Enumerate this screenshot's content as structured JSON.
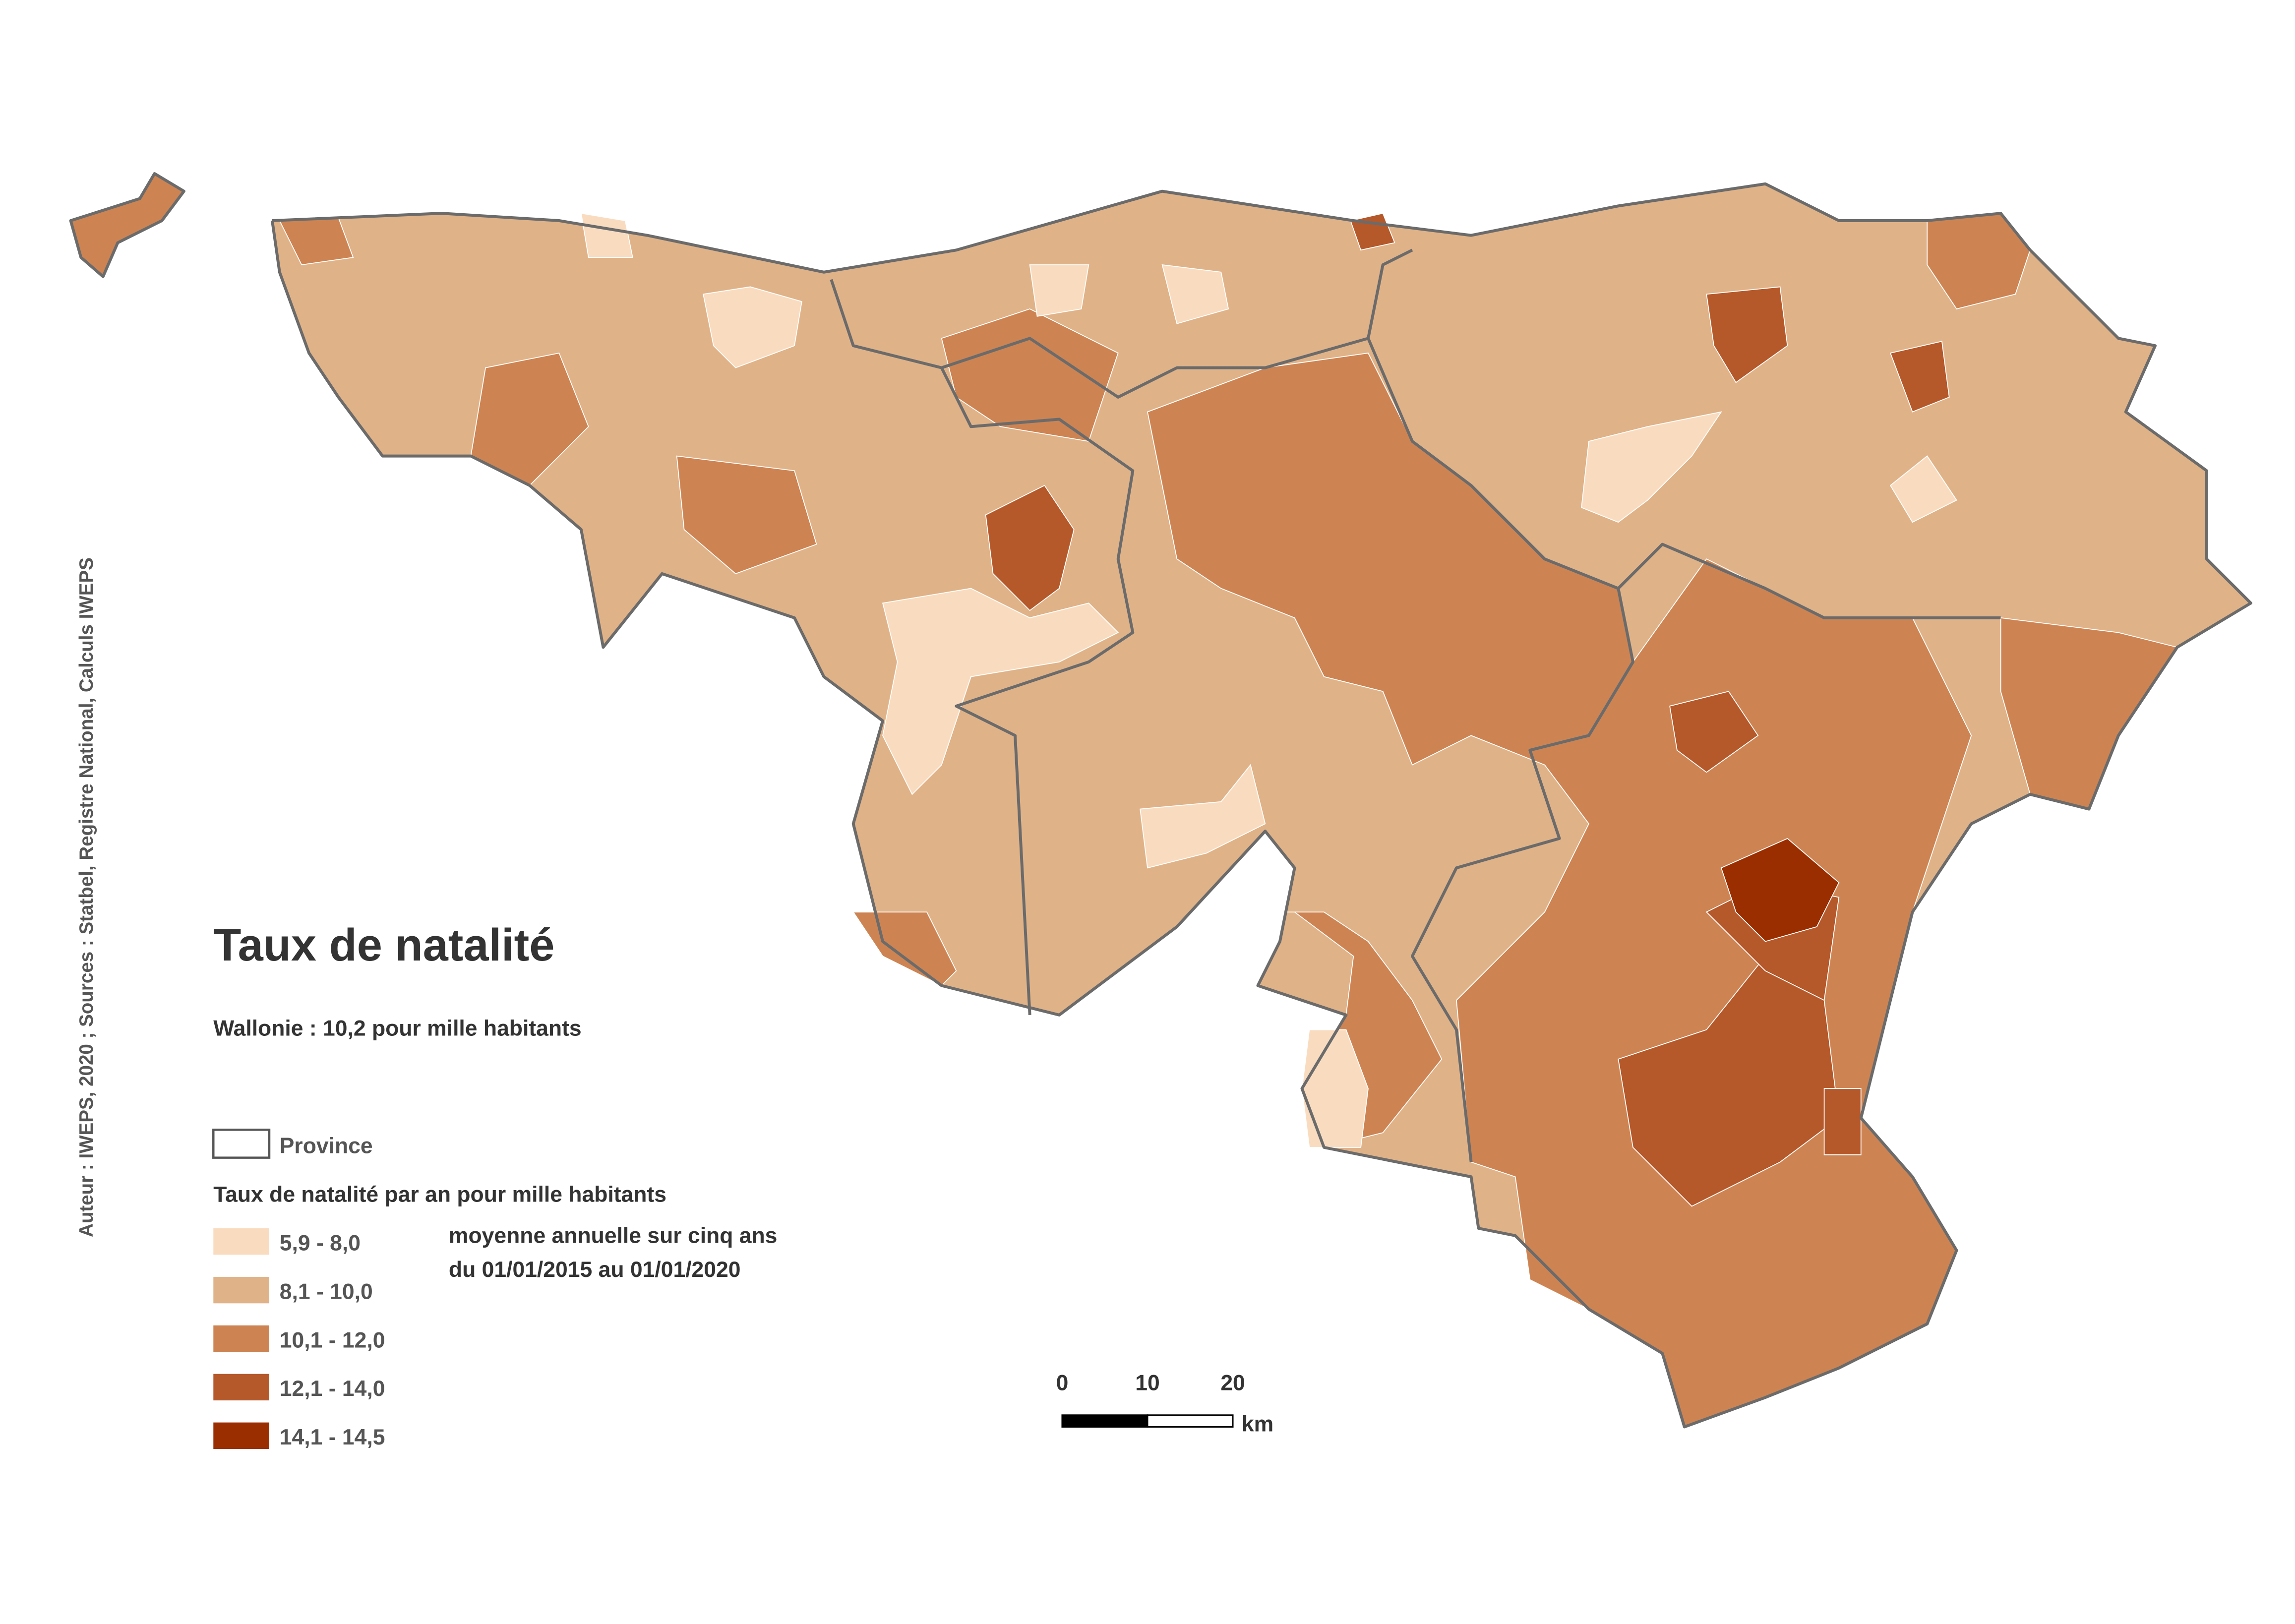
{
  "title": "Taux de natalité",
  "subtitle": "Wallonie : 10,2 pour mille habitants",
  "credit": "Auteur : IWEPS, 2020 ; Sources : Statbel, Registre National, Calculs IWEPS",
  "legend": {
    "boundary": "Province",
    "title": "Taux de natalité par an pour mille habitants",
    "note": [
      "moyenne annuelle sur cinq ans",
      "du 01/01/2015 au 01/01/2020"
    ],
    "classes": [
      {
        "label": "5,9 - 8,0",
        "color": "#f9dcc0"
      },
      {
        "label": "8,1 - 10,0",
        "color": "#e0b287"
      },
      {
        "label": "10,1 - 12,0",
        "color": "#cd8452"
      },
      {
        "label": "12,1 - 14,0",
        "color": "#b5582a"
      },
      {
        "label": "14,1 - 14,5",
        "color": "#9a2e00"
      }
    ]
  },
  "scale_bar": {
    "ticks": [
      "0",
      "10",
      "20"
    ],
    "unit": "km"
  }
}
